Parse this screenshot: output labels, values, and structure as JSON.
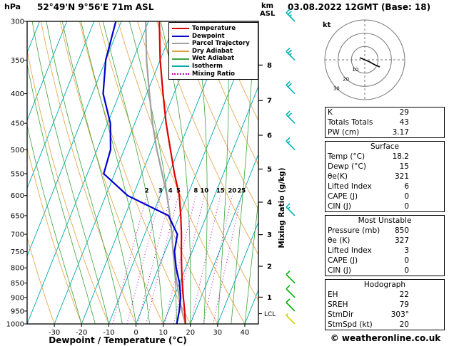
{
  "header": {
    "pressure_unit": "hPa",
    "station_title": "52°49'N 9°56'E 71m ASL",
    "altitude_unit_km": "km",
    "altitude_unit_asl": "ASL",
    "datetime_title": "03.08.2022 12GMT (Base: 18)"
  },
  "hodograph": {
    "unit_label": "kt",
    "ring_labels": [
      "10",
      "20",
      "30"
    ]
  },
  "panel": {
    "tables": [
      {
        "header": null,
        "rows": [
          [
            "K",
            "29"
          ],
          [
            "Totals Totals",
            "43"
          ],
          [
            "PW (cm)",
            "3.17"
          ]
        ]
      },
      {
        "header": "Surface",
        "rows": [
          [
            "Temp (°C)",
            "18.2"
          ],
          [
            "Dewp (°C)",
            "15"
          ],
          [
            "θe(K)",
            "321"
          ],
          [
            "Lifted Index",
            "6"
          ],
          [
            "CAPE (J)",
            "0"
          ],
          [
            "CIN (J)",
            "0"
          ]
        ]
      },
      {
        "header": "Most Unstable",
        "rows": [
          [
            "Pressure (mb)",
            "850"
          ],
          [
            "θe (K)",
            "327"
          ],
          [
            "Lifted Index",
            "3"
          ],
          [
            "CAPE (J)",
            "0"
          ],
          [
            "CIN (J)",
            "0"
          ]
        ]
      },
      {
        "header": "Hodograph",
        "rows": [
          [
            "EH",
            "22"
          ],
          [
            "SREH",
            "79"
          ],
          [
            "StmDir",
            "303°"
          ],
          [
            "StmSpd (kt)",
            "20"
          ]
        ]
      }
    ]
  },
  "footer": {
    "copyright": "© weatheronline.co.uk"
  },
  "chart_data": {
    "type": "skewt-log-p sounding",
    "title": "52°49'N 9°56'E 71m ASL",
    "datetime": "03.08.2022 12GMT (Base: 18)",
    "pressure_axis": {
      "label": "hPa",
      "ticks": [
        300,
        350,
        400,
        450,
        500,
        550,
        600,
        650,
        700,
        750,
        800,
        850,
        900,
        950,
        1000
      ],
      "min": 300,
      "max": 1000,
      "scale": "log"
    },
    "temp_axis": {
      "label": "Dewpoint / Temperature (°C)",
      "ticks": [
        -30,
        -20,
        -10,
        0,
        10,
        20,
        30,
        40
      ],
      "min": -40,
      "max": 45
    },
    "km_axis": {
      "marks": [
        {
          "km": 1,
          "p": 899
        },
        {
          "km": 2,
          "p": 795
        },
        {
          "km": 3,
          "p": 701
        },
        {
          "km": 4,
          "p": 616
        },
        {
          "km": 5,
          "p": 540
        },
        {
          "km": 6,
          "p": 472
        },
        {
          "km": 7,
          "p": 411
        },
        {
          "km": 8,
          "p": 357
        }
      ],
      "lcl_label": "LCL",
      "lcl_p": 960
    },
    "mixing_ratio": {
      "label": "Mixing Ratio (g/kg)",
      "values": [
        2,
        3,
        4,
        5,
        8,
        10,
        15,
        20,
        25
      ],
      "top_p": 600
    },
    "isotherms": {
      "min": -120,
      "max": 40,
      "step": 10
    },
    "dry_adiabats": {
      "min": -40,
      "max": 120,
      "step": 10
    },
    "wet_adiabats": {
      "min": -20,
      "max": 40,
      "step": 5
    },
    "temperature_profile": [
      [
        300,
        -36
      ],
      [
        350,
        -30
      ],
      [
        400,
        -24
      ],
      [
        450,
        -18.5
      ],
      [
        500,
        -13
      ],
      [
        550,
        -8
      ],
      [
        600,
        -3
      ],
      [
        650,
        0.5
      ],
      [
        700,
        3.5
      ],
      [
        750,
        6
      ],
      [
        800,
        8.5
      ],
      [
        850,
        11
      ],
      [
        900,
        13.5
      ],
      [
        950,
        16
      ],
      [
        1000,
        18.2
      ]
    ],
    "dewpoint_profile": [
      [
        300,
        -52
      ],
      [
        350,
        -50
      ],
      [
        400,
        -46
      ],
      [
        450,
        -39
      ],
      [
        500,
        -35
      ],
      [
        550,
        -34
      ],
      [
        600,
        -22
      ],
      [
        650,
        -4
      ],
      [
        700,
        2
      ],
      [
        750,
        3.5
      ],
      [
        800,
        6.5
      ],
      [
        850,
        10
      ],
      [
        900,
        12.5
      ],
      [
        950,
        14
      ],
      [
        1000,
        15
      ]
    ],
    "parcel_profile": [
      [
        300,
        -41
      ],
      [
        350,
        -35
      ],
      [
        400,
        -29
      ],
      [
        450,
        -23.5
      ],
      [
        500,
        -18
      ],
      [
        550,
        -12.5
      ],
      [
        600,
        -7.5
      ],
      [
        650,
        -3.5
      ],
      [
        700,
        0
      ],
      [
        750,
        3
      ],
      [
        800,
        6
      ],
      [
        850,
        9
      ],
      [
        900,
        12
      ],
      [
        950,
        15
      ],
      [
        1000,
        18.2
      ]
    ],
    "wind_barbs": [
      {
        "p": 300,
        "speed": 25,
        "color": "#00b4b4"
      },
      {
        "p": 350,
        "speed": 25,
        "color": "#00b4b4"
      },
      {
        "p": 400,
        "speed": 20,
        "color": "#00b4b4"
      },
      {
        "p": 450,
        "speed": 20,
        "color": "#00b4b4"
      },
      {
        "p": 500,
        "speed": 15,
        "color": "#00b4b4"
      },
      {
        "p": 650,
        "speed": 15,
        "color": "#00b4b4"
      },
      {
        "p": 850,
        "speed": 10,
        "color": "#00b400"
      },
      {
        "p": 900,
        "speed": 10,
        "color": "#00b400"
      },
      {
        "p": 950,
        "speed": 10,
        "color": "#00b400"
      },
      {
        "p": 1000,
        "speed": 5,
        "color": "#d2d200"
      }
    ],
    "colors": {
      "temperature": "#dd0000",
      "dewpoint": "#0000cc",
      "parcel": "#a0a0a0",
      "dry_adiabat": "#e0a040",
      "wet_adiabat": "#3aa43a",
      "isotherm": "#00a8a8",
      "mixing_ratio": "#c000c0"
    },
    "legend": [
      {
        "label": "Temperature",
        "color": "#dd0000",
        "dotted": false
      },
      {
        "label": "Dewpoint",
        "color": "#0000cc",
        "dotted": false
      },
      {
        "label": "Parcel Trajectory",
        "color": "#a0a0a0",
        "dotted": false
      },
      {
        "label": "Dry Adiabat",
        "color": "#e0a040",
        "dotted": false
      },
      {
        "label": "Wet Adiabat",
        "color": "#3aa43a",
        "dotted": false
      },
      {
        "label": "Isotherm",
        "color": "#00a8a8",
        "dotted": false
      },
      {
        "label": "Mixing Ratio",
        "color": "#c000c0",
        "dotted": true
      }
    ]
  }
}
